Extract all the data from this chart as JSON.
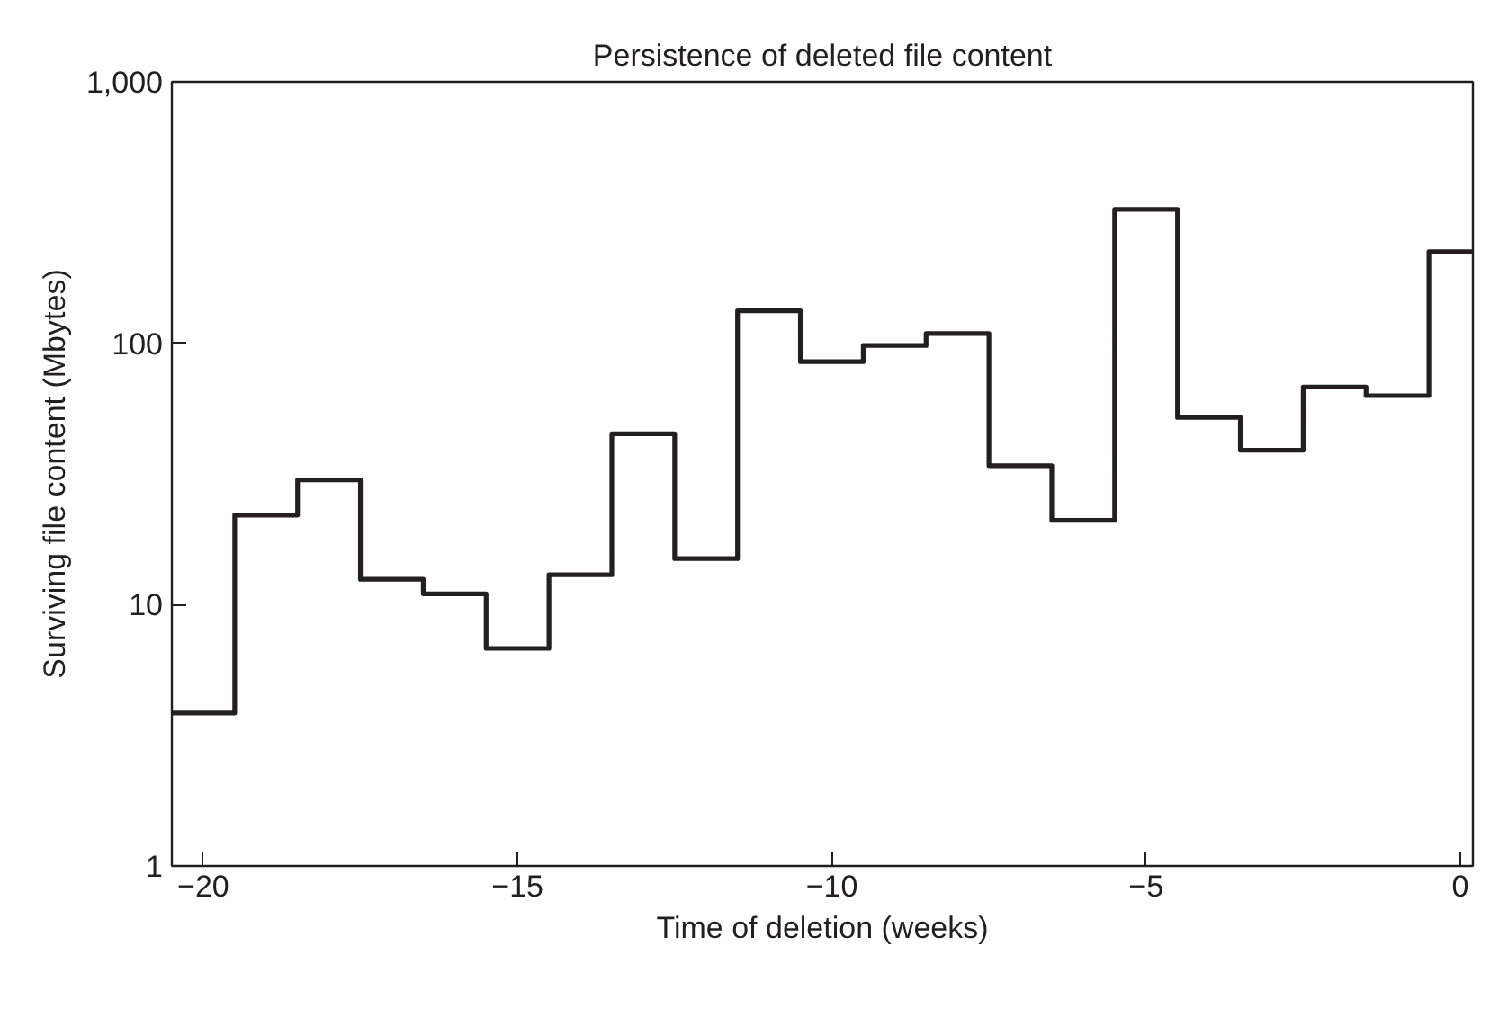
{
  "chart_data": {
    "type": "step",
    "title": "Persistence of deleted file content",
    "xlabel": "Time of deletion (weeks)",
    "ylabel": "Surviving file content (Mbytes)",
    "x": [
      -20,
      -19,
      -18,
      -17,
      -16,
      -15,
      -14,
      -13,
      -12,
      -11,
      -10,
      -9,
      -8,
      -7,
      -6,
      -5,
      -4,
      -3,
      -2,
      -1,
      0
    ],
    "series": [
      {
        "color": "#231f20",
        "values": [
          3.85,
          22,
          30,
          12.5,
          11,
          6.8,
          13,
          45,
          15,
          133,
          85,
          98,
          109,
          34,
          21,
          325,
          52,
          39,
          68,
          63,
          224
        ]
      }
    ],
    "log": "y",
    "xlim": [
      -20.5,
      0.2
    ],
    "ylim": [
      1,
      1000
    ],
    "xticks": [
      {
        "value": -20,
        "label": "−20"
      },
      {
        "value": -15,
        "label": "−15"
      },
      {
        "value": -10,
        "label": "−10"
      },
      {
        "value": -5,
        "label": "−5"
      },
      0
    ],
    "yticks": [
      1,
      10,
      100,
      {
        "value": 1000,
        "label": "1,000"
      }
    ],
    "grid": false,
    "marker": "none",
    "line_style": "solid"
  }
}
